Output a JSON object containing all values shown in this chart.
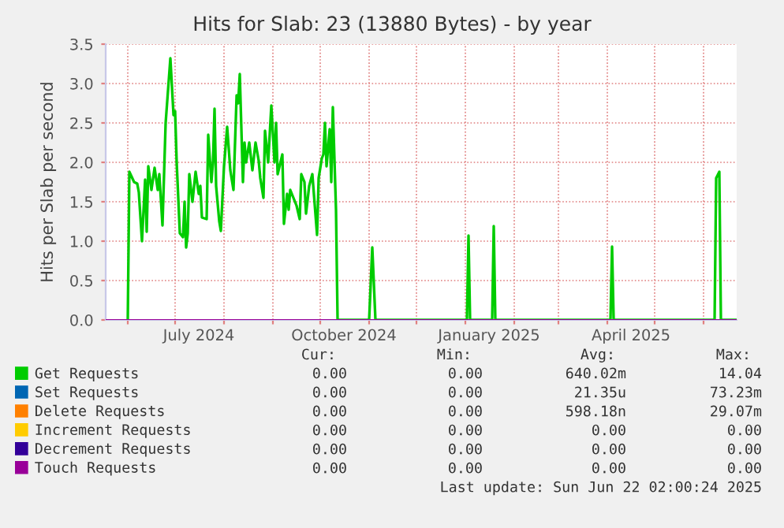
{
  "chart_data": {
    "type": "line",
    "title": "Hits for Slab: 23 (13880 Bytes) - by year",
    "ylabel": "Hits per Slab per second",
    "xlim": [
      "2024-05-18",
      "2025-06-22"
    ],
    "xticks": [
      {
        "value": "2024-06-01",
        "label": null
      },
      {
        "value": "2024-07-01",
        "label": null
      },
      {
        "value": "2024-07-16",
        "label": "July 2024"
      },
      {
        "value": "2024-08-01",
        "label": null
      },
      {
        "value": "2024-09-01",
        "label": null
      },
      {
        "value": "2024-10-01",
        "label": null
      },
      {
        "value": "2024-10-16",
        "label": "October 2024"
      },
      {
        "value": "2024-11-01",
        "label": null
      },
      {
        "value": "2024-12-01",
        "label": null
      },
      {
        "value": "2025-01-01",
        "label": null
      },
      {
        "value": "2025-01-16",
        "label": "January 2025"
      },
      {
        "value": "2025-02-01",
        "label": null
      },
      {
        "value": "2025-03-01",
        "label": null
      },
      {
        "value": "2025-04-01",
        "label": null
      },
      {
        "value": "2025-04-16",
        "label": "April 2025"
      },
      {
        "value": "2025-05-01",
        "label": null
      },
      {
        "value": "2025-06-01",
        "label": null
      }
    ],
    "ylim": [
      0,
      3.5
    ],
    "yticks": [
      {
        "value": 0,
        "label": "0.0"
      },
      {
        "value": 0.5,
        "label": "0.5"
      },
      {
        "value": 1,
        "label": "1.0"
      },
      {
        "value": 1.5,
        "label": "1.5"
      },
      {
        "value": 2,
        "label": "2.0"
      },
      {
        "value": 2.5,
        "label": "2.5"
      },
      {
        "value": 3,
        "label": "3.0"
      },
      {
        "value": 3.5,
        "label": "3.5"
      }
    ],
    "grid": true,
    "legend": "bottom",
    "marker": "none",
    "line_style": "solid",
    "series": [
      {
        "name": "Get Requests",
        "color": "#00cc00",
        "x": [
          "2024-06-01",
          "2024-06-02",
          "2024-06-05",
          "2024-06-07",
          "2024-06-08",
          "2024-06-10",
          "2024-06-12",
          "2024-06-13",
          "2024-06-14",
          "2024-06-16",
          "2024-06-18",
          "2024-06-20",
          "2024-06-21",
          "2024-06-23",
          "2024-06-25",
          "2024-06-28",
          "2024-06-30",
          "2024-07-01",
          "2024-07-02",
          "2024-07-04",
          "2024-07-06",
          "2024-07-07",
          "2024-07-08",
          "2024-07-09",
          "2024-07-10",
          "2024-07-12",
          "2024-07-14",
          "2024-07-16",
          "2024-07-17",
          "2024-07-18",
          "2024-07-21",
          "2024-07-22",
          "2024-07-24",
          "2024-07-25",
          "2024-07-26",
          "2024-07-27",
          "2024-07-29",
          "2024-07-30",
          "2024-08-01",
          "2024-08-03",
          "2024-08-05",
          "2024-08-07",
          "2024-08-09",
          "2024-08-10",
          "2024-08-11",
          "2024-08-13",
          "2024-08-14",
          "2024-08-15",
          "2024-08-17",
          "2024-08-19",
          "2024-08-21",
          "2024-08-23",
          "2024-08-24",
          "2024-08-26",
          "2024-08-27",
          "2024-08-29",
          "2024-08-31",
          "2024-09-02",
          "2024-09-03",
          "2024-09-04",
          "2024-09-07",
          "2024-09-08",
          "2024-09-10",
          "2024-09-11",
          "2024-09-12",
          "2024-09-14",
          "2024-09-16",
          "2024-09-18",
          "2024-09-19",
          "2024-09-21",
          "2024-09-22",
          "2024-09-24",
          "2024-09-26",
          "2024-09-29",
          "2024-09-30",
          "2024-10-02",
          "2024-10-03",
          "2024-10-04",
          "2024-10-05",
          "2024-10-07",
          "2024-10-08",
          "2024-10-09",
          "2024-10-11",
          "2024-10-12",
          "2024-11-01",
          "2024-11-03",
          "2024-11-05",
          "2025-01-02",
          "2025-01-03",
          "2025-01-04",
          "2025-01-18",
          "2025-01-19",
          "2025-01-20",
          "2025-04-03",
          "2025-04-04",
          "2025-04-05",
          "2025-06-08",
          "2025-06-09",
          "2025-06-11",
          "2025-06-12",
          "2025-06-22"
        ],
        "values": [
          0,
          1.88,
          1.75,
          1.73,
          1.62,
          1.0,
          1.78,
          1.12,
          1.95,
          1.65,
          1.93,
          1.65,
          1.85,
          1.2,
          2.5,
          3.32,
          2.6,
          2.65,
          2.0,
          1.1,
          1.05,
          1.5,
          0.92,
          1.1,
          1.85,
          1.5,
          1.88,
          1.6,
          1.7,
          1.3,
          1.28,
          2.35,
          1.75,
          2.0,
          2.68,
          1.7,
          1.25,
          1.13,
          1.95,
          2.45,
          1.9,
          1.65,
          2.85,
          2.75,
          3.12,
          1.75,
          2.25,
          2.0,
          2.25,
          1.9,
          2.25,
          2.02,
          1.8,
          1.55,
          2.4,
          2.0,
          2.72,
          2.0,
          2.5,
          1.85,
          2.1,
          1.22,
          1.6,
          1.4,
          1.65,
          1.55,
          1.45,
          1.28,
          1.85,
          1.75,
          1.35,
          1.7,
          1.85,
          1.08,
          1.8,
          2.05,
          2.1,
          2.5,
          1.95,
          2.42,
          1.75,
          2.7,
          1.4,
          0,
          0,
          0.92,
          0,
          0,
          1.07,
          0,
          0,
          1.19,
          0,
          0,
          0.93,
          0,
          0,
          1.8,
          1.88,
          0,
          0
        ]
      },
      {
        "name": "Set Requests",
        "color": "#0066b3"
      },
      {
        "name": "Delete Requests",
        "color": "#ff8000"
      },
      {
        "name": "Increment Requests",
        "color": "#ffcc00"
      },
      {
        "name": "Decrement Requests",
        "color": "#330099"
      },
      {
        "name": "Touch Requests",
        "color": "#990099",
        "x": [
          "2024-05-18",
          "2025-06-22"
        ],
        "values": [
          0,
          0
        ]
      }
    ],
    "annotations": [
      "Cur:",
      "Min:",
      "Avg:",
      "Max:",
      "0.00",
      "0.00",
      "640.02m",
      "14.04",
      "0.00",
      "0.00",
      "21.35u",
      "73.23m",
      "0.00",
      "0.00",
      "598.18n",
      "29.07m",
      "0.00",
      "0.00",
      "0.00",
      "0.00",
      "0.00",
      "0.00",
      "0.00",
      "0.00",
      "0.00",
      "0.00",
      "0.00",
      "0.00",
      "Last update: Sun Jun 22 02:00:24 2025"
    ]
  }
}
